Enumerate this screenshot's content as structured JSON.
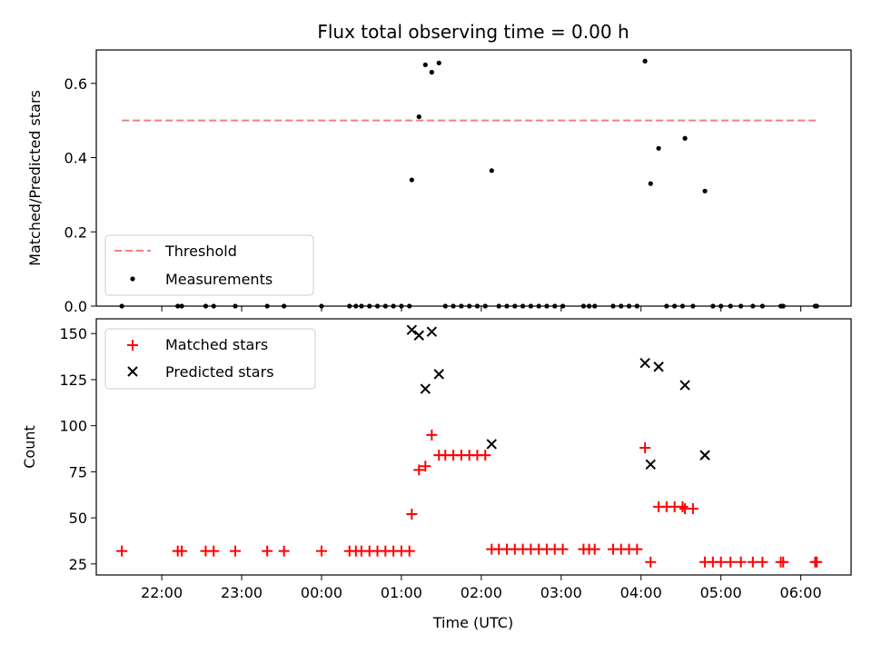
{
  "chart_data": [
    {
      "type": "scatter",
      "title": "Flux total observing time = 0.00 h",
      "xlabel": "",
      "ylabel": "Matched/Predicted stars",
      "ylim": [
        0,
        0.69
      ],
      "yticks": [
        "0.0",
        "0.2",
        "0.4",
        "0.6"
      ],
      "ytick_values": [
        0,
        0.2,
        0.4,
        0.6
      ],
      "x_unit": "hours (UTC) relative to 00:00",
      "grid": false,
      "legend": "lower-left",
      "threshold": {
        "name": "Threshold",
        "y": 0.5,
        "x_start": -2.5,
        "x_end": 6.2,
        "color": "#f08080"
      },
      "series": [
        {
          "name": "Measurements",
          "color": "#000000",
          "x": [
            -2.5,
            -1.8,
            -1.75,
            -1.45,
            -1.35,
            -1.08,
            -0.68,
            -0.47,
            0.0,
            0.35,
            0.43,
            0.5,
            0.6,
            0.7,
            0.8,
            0.9,
            1.0,
            1.1,
            1.13,
            1.22,
            1.3,
            1.38,
            1.47,
            1.55,
            1.65,
            1.75,
            1.85,
            1.95,
            2.05,
            2.13,
            2.22,
            2.32,
            2.42,
            2.52,
            2.62,
            2.72,
            2.82,
            2.92,
            3.02,
            3.28,
            3.35,
            3.42,
            3.65,
            3.75,
            3.85,
            3.95,
            4.05,
            4.12,
            4.22,
            4.32,
            4.42,
            4.52,
            4.55,
            4.65,
            4.8,
            4.9,
            5.0,
            5.12,
            5.25,
            5.4,
            5.52,
            5.75,
            5.78,
            6.18,
            6.2
          ],
          "y": [
            0,
            0,
            0,
            0,
            0,
            0,
            0,
            0,
            0,
            0,
            0,
            0,
            0,
            0,
            0,
            0,
            0,
            0,
            0.34,
            0.51,
            0.65,
            0.63,
            0.655,
            0,
            0,
            0,
            0,
            0,
            0,
            0.365,
            0,
            0,
            0,
            0,
            0,
            0,
            0,
            0,
            0,
            0,
            0,
            0,
            0,
            0,
            0,
            0,
            0.66,
            0.33,
            0.425,
            0,
            0,
            0,
            0.452,
            0,
            0.31,
            0,
            0,
            0,
            0,
            0,
            0,
            0,
            0,
            0,
            0
          ]
        }
      ]
    },
    {
      "type": "scatter",
      "title": "",
      "xlabel": "Time (UTC)",
      "ylabel": "Count",
      "ylim": [
        19,
        158
      ],
      "yticks": [
        "25",
        "50",
        "75",
        "100",
        "125",
        "150"
      ],
      "ytick_values": [
        25,
        50,
        75,
        100,
        125,
        150
      ],
      "xlim": [
        -2.82,
        6.63
      ],
      "xticks": [
        "22:00",
        "23:00",
        "00:00",
        "01:00",
        "02:00",
        "03:00",
        "04:00",
        "05:00",
        "06:00"
      ],
      "xtick_values": [
        -2,
        -1,
        0,
        1,
        2,
        3,
        4,
        5,
        6
      ],
      "x_unit": "hours (UTC) relative to 00:00",
      "grid": false,
      "legend": "top-left",
      "series": [
        {
          "name": "Matched stars",
          "color": "#ff0000",
          "marker": "plus",
          "x": [
            -2.5,
            -1.8,
            -1.75,
            -1.45,
            -1.35,
            -1.08,
            -0.68,
            -0.47,
            0.0,
            0.35,
            0.43,
            0.5,
            0.6,
            0.7,
            0.8,
            0.9,
            1.0,
            1.1,
            1.13,
            1.22,
            1.3,
            1.38,
            1.47,
            1.55,
            1.65,
            1.75,
            1.85,
            1.95,
            2.05,
            2.13,
            2.22,
            2.32,
            2.42,
            2.52,
            2.62,
            2.72,
            2.82,
            2.92,
            3.02,
            3.28,
            3.35,
            3.42,
            3.65,
            3.75,
            3.85,
            3.95,
            4.05,
            4.12,
            4.22,
            4.32,
            4.42,
            4.52,
            4.55,
            4.65,
            4.8,
            4.9,
            5.0,
            5.12,
            5.25,
            5.4,
            5.52,
            5.75,
            5.78,
            6.18,
            6.2
          ],
          "y": [
            32,
            32,
            32,
            32,
            32,
            32,
            32,
            32,
            32,
            32,
            32,
            32,
            32,
            32,
            32,
            32,
            32,
            32,
            52,
            76,
            78,
            95,
            84,
            84,
            84,
            84,
            84,
            84,
            84,
            33,
            33,
            33,
            33,
            33,
            33,
            33,
            33,
            33,
            33,
            33,
            33,
            33,
            33,
            33,
            33,
            33,
            88,
            26,
            56,
            56,
            56,
            56,
            55,
            55,
            26,
            26,
            26,
            26,
            26,
            26,
            26,
            26,
            26,
            26,
            26
          ]
        },
        {
          "name": "Predicted stars",
          "color": "#000000",
          "marker": "x",
          "x": [
            1.13,
            1.22,
            1.3,
            1.38,
            1.47,
            2.13,
            4.05,
            4.12,
            4.22,
            4.55,
            4.8
          ],
          "y": [
            152,
            149,
            120,
            151,
            128,
            90,
            134,
            79,
            132,
            122,
            84
          ]
        }
      ]
    }
  ]
}
